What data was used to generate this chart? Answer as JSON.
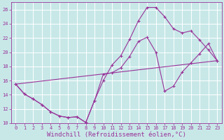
{
  "background_color": "#c8e8e8",
  "grid_color": "#aacccc",
  "line_color": "#993399",
  "xlabel": "Windchill (Refroidissement éolien,°C)",
  "xlabel_fontsize": 6.5,
  "xlim": [
    -0.5,
    23.5
  ],
  "ylim": [
    10,
    27
  ],
  "yticks": [
    10,
    12,
    14,
    16,
    18,
    20,
    22,
    24,
    26
  ],
  "xticks": [
    0,
    1,
    2,
    3,
    4,
    5,
    6,
    7,
    8,
    9,
    10,
    11,
    12,
    13,
    14,
    15,
    16,
    17,
    18,
    19,
    20,
    21,
    22,
    23
  ],
  "line1_x": [
    0,
    1,
    2,
    3,
    4,
    5,
    6,
    7,
    8,
    9,
    10,
    11,
    12,
    13,
    14,
    15,
    16,
    17,
    18,
    19,
    20,
    21,
    22,
    23
  ],
  "line1_y": [
    15.5,
    14.1,
    13.4,
    12.6,
    11.6,
    11.0,
    10.8,
    10.9,
    10.1,
    13.2,
    16.9,
    17.1,
    17.8,
    19.4,
    21.5,
    22.1,
    20.0,
    14.5,
    15.2,
    17.2,
    18.5,
    19.8,
    21.2,
    18.8
  ],
  "line2_x": [
    0,
    1,
    2,
    3,
    4,
    5,
    6,
    7,
    8,
    9,
    10,
    11,
    12,
    13,
    14,
    15,
    16,
    17,
    18,
    19,
    20,
    21,
    22,
    23
  ],
  "line2_y": [
    15.5,
    14.1,
    13.4,
    12.6,
    11.6,
    11.0,
    10.8,
    10.9,
    10.1,
    13.2,
    16.0,
    18.2,
    19.5,
    21.8,
    24.4,
    26.3,
    26.3,
    25.0,
    23.3,
    22.7,
    23.0,
    21.7,
    20.3,
    18.8
  ],
  "line3_x": [
    0,
    23
  ],
  "line3_y": [
    15.5,
    18.8
  ]
}
